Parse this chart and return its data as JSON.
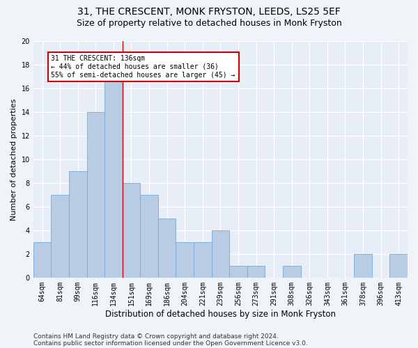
{
  "title1": "31, THE CRESCENT, MONK FRYSTON, LEEDS, LS25 5EF",
  "title2": "Size of property relative to detached houses in Monk Fryston",
  "xlabel": "Distribution of detached houses by size in Monk Fryston",
  "ylabel": "Number of detached properties",
  "categories": [
    "64sqm",
    "81sqm",
    "99sqm",
    "116sqm",
    "134sqm",
    "151sqm",
    "169sqm",
    "186sqm",
    "204sqm",
    "221sqm",
    "239sqm",
    "256sqm",
    "273sqm",
    "291sqm",
    "308sqm",
    "326sqm",
    "343sqm",
    "361sqm",
    "378sqm",
    "396sqm",
    "413sqm"
  ],
  "values": [
    3,
    7,
    9,
    14,
    17,
    8,
    7,
    5,
    3,
    3,
    4,
    1,
    1,
    0,
    1,
    0,
    0,
    0,
    2,
    0,
    2
  ],
  "highlight_index": 4,
  "bar_color": "#b8cce4",
  "bar_edge_color": "#7ba7d4",
  "highlight_line_color": "#cc0000",
  "annotation_text": "31 THE CRESCENT: 136sqm\n← 44% of detached houses are smaller (36)\n55% of semi-detached houses are larger (45) →",
  "annotation_box_color": "#ffffff",
  "annotation_box_edge_color": "#cc0000",
  "ylim": [
    0,
    20
  ],
  "yticks": [
    0,
    2,
    4,
    6,
    8,
    10,
    12,
    14,
    16,
    18,
    20
  ],
  "footer1": "Contains HM Land Registry data © Crown copyright and database right 2024.",
  "footer2": "Contains public sector information licensed under the Open Government Licence v3.0.",
  "fig_bg_color": "#f0f4f8",
  "plot_bg_color": "#e8eef8",
  "grid_color": "#ffffff",
  "title_fontsize": 10,
  "subtitle_fontsize": 9,
  "tick_fontsize": 7,
  "ylabel_fontsize": 8,
  "xlabel_fontsize": 8.5,
  "annotation_fontsize": 7,
  "footer_fontsize": 6.5
}
